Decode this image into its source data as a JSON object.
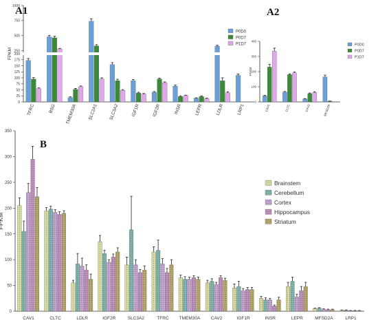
{
  "chart_data": [
    {
      "panel": "A1",
      "type": "bar",
      "ylabel": "FPKM",
      "categories": [
        "TFRC",
        "BSG",
        "TMEM30A",
        "SLC2A1",
        "SLC3A2",
        "IGF1R",
        "IGF2R",
        "INSR",
        "LEPR",
        "LDLR",
        "LRP1"
      ],
      "yticks": [
        "0",
        "25",
        "50",
        "75",
        "100",
        "125",
        "150",
        "175",
        "200",
        "250",
        "500",
        "750",
        "1000"
      ],
      "axis_break": true,
      "legend_position": "top-right",
      "series": [
        {
          "name": "P0D0",
          "color": "#6a9fd8",
          "values": [
            172,
            480,
            18,
            740,
            155,
            88,
            40,
            65,
            15,
            325,
            110
          ],
          "errors": [
            8,
            25,
            3,
            40,
            8,
            5,
            3,
            5,
            2,
            15,
            6
          ]
        },
        {
          "name": "P0D7",
          "color": "#3a8a3a",
          "values": [
            95,
            465,
            52,
            330,
            88,
            37,
            95,
            22,
            22,
            88,
            0
          ],
          "errors": [
            6,
            25,
            4,
            20,
            6,
            3,
            4,
            3,
            3,
            12,
            0
          ]
        },
        {
          "name": "P1D7",
          "color": "#e0a8e8",
          "values": [
            55,
            280,
            63,
            95,
            48,
            32,
            80,
            26,
            14,
            38,
            0
          ],
          "errors": [
            3,
            8,
            3,
            5,
            3,
            3,
            3,
            2,
            2,
            4,
            0
          ]
        }
      ]
    },
    {
      "panel": "A2",
      "type": "bar",
      "ylabel": "FPKM",
      "categories": [
        "CAV1",
        "CLTC",
        "CAV2",
        "MFSD2A"
      ],
      "yticks": [
        "0",
        "100",
        "200",
        "300",
        "400"
      ],
      "ylim": [
        0,
        400
      ],
      "legend_position": "top-right",
      "series": [
        {
          "name": "P0D0",
          "color": "#6a9fd8",
          "values": [
            40,
            65,
            20,
            165
          ],
          "errors": [
            4,
            4,
            2,
            12
          ]
        },
        {
          "name": "P0D7",
          "color": "#3a8a3a",
          "values": [
            230,
            180,
            55,
            5
          ],
          "errors": [
            18,
            5,
            4,
            1
          ]
        },
        {
          "name": "P1D7",
          "color": "#e0a8e8",
          "values": [
            335,
            192,
            63,
            0
          ],
          "errors": [
            20,
            6,
            4,
            0
          ]
        }
      ]
    },
    {
      "panel": "B",
      "type": "bar",
      "ylabel": "FPKM",
      "categories": [
        "CAV1",
        "CLTC",
        "LDLR",
        "IGF2R",
        "SLC3A2",
        "TFRC",
        "TMEM30A",
        "CAV2",
        "IGF1R",
        "INSR",
        "LEPR",
        "MFSD2A",
        "LRP1"
      ],
      "yticks": [
        "0",
        "50",
        "100",
        "150",
        "200",
        "250",
        "300",
        "350"
      ],
      "ylim": [
        0,
        350
      ],
      "legend_position": "right",
      "series": [
        {
          "name": "Brainstem",
          "color": "#d8dba0",
          "values": [
            205,
            195,
            55,
            135,
            90,
            115,
            65,
            55,
            45,
            25,
            48,
            5,
            2
          ],
          "errors": [
            15,
            6,
            5,
            12,
            15,
            10,
            5,
            5,
            8,
            4,
            8,
            1,
            0.5
          ]
        },
        {
          "name": "Cerebellum",
          "color": "#7fb5ad",
          "values": [
            155,
            198,
            92,
            112,
            158,
            118,
            62,
            58,
            48,
            22,
            58,
            6,
            2
          ],
          "errors": [
            20,
            6,
            20,
            6,
            65,
            20,
            5,
            5,
            10,
            4,
            8,
            1,
            0.5
          ]
        },
        {
          "name": "Cortex",
          "color": "#c6a2d4",
          "values": [
            230,
            192,
            88,
            95,
            90,
            92,
            62,
            52,
            40,
            22,
            28,
            4,
            1
          ],
          "errors": [
            18,
            5,
            15,
            5,
            10,
            10,
            4,
            4,
            4,
            3,
            5,
            1,
            0.5
          ]
        },
        {
          "name": "Hippocampus",
          "color": "#c18fbc",
          "values": [
            295,
            188,
            80,
            105,
            75,
            75,
            65,
            65,
            42,
            10,
            40,
            3,
            1
          ],
          "errors": [
            25,
            5,
            10,
            6,
            6,
            8,
            4,
            4,
            4,
            2,
            8,
            1,
            0.5
          ]
        },
        {
          "name": "Striatum",
          "color": "#b5a66a",
          "values": [
            222,
            190,
            62,
            115,
            80,
            90,
            62,
            60,
            42,
            22,
            48,
            3,
            1
          ],
          "errors": [
            18,
            5,
            10,
            8,
            8,
            10,
            4,
            4,
            4,
            5,
            8,
            1,
            0.5
          ]
        }
      ]
    }
  ],
  "labels": {
    "a1": "A1",
    "a2": "A2",
    "b": "B"
  }
}
